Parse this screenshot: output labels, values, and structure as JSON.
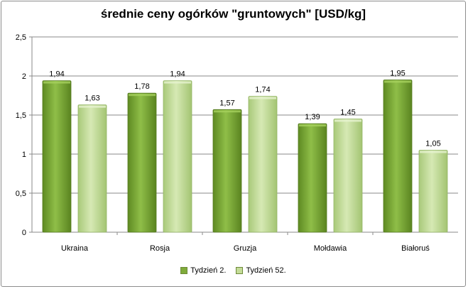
{
  "chart_data": {
    "type": "bar",
    "title": "średnie ceny ogórków \"gruntowych\" [USD/kg]",
    "categories": [
      "Ukraina",
      "Rosja",
      "Gruzja",
      "Mołdawia",
      "Białoruś"
    ],
    "series": [
      {
        "name": "Tydzień 2.",
        "values": [
          1.94,
          1.78,
          1.57,
          1.39,
          1.95
        ],
        "labels": [
          "1,94",
          "1,78",
          "1,57",
          "1,39",
          "1,95"
        ],
        "color": "#7fab3a"
      },
      {
        "name": "Tydzień 52.",
        "values": [
          1.63,
          1.94,
          1.74,
          1.45,
          1.05
        ],
        "labels": [
          "1,63",
          "1,94",
          "1,74",
          "1,45",
          "1,05"
        ],
        "color": "#c4dc98"
      }
    ],
    "ylim": [
      0,
      2.5
    ],
    "yticks": [
      0,
      0.5,
      1,
      1.5,
      2,
      2.5
    ],
    "ytick_labels": [
      "0",
      "0,5",
      "1",
      "1,5",
      "2",
      "2,5"
    ],
    "grid": true,
    "legend": "bottom"
  }
}
